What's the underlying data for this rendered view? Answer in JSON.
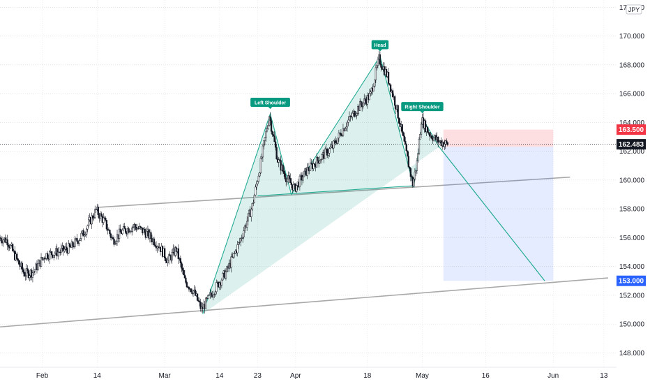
{
  "chart_data": {
    "type": "candlestick",
    "currency": "JPY",
    "y_axis": {
      "range": [
        147,
        172.5
      ],
      "ticks": [
        "148.000",
        "150.000",
        "152.000",
        "154.000",
        "156.000",
        "158.000",
        "160.000",
        "162.000",
        "164.000",
        "166.000",
        "168.000",
        "170.000",
        "172.000"
      ],
      "tick_values": [
        148,
        150,
        152,
        154,
        156,
        158,
        160,
        162,
        164,
        166,
        168,
        170,
        172
      ]
    },
    "x_axis": {
      "ticks": [
        "Feb",
        "14",
        "Mar",
        "14",
        "23",
        "Apr",
        "18",
        "May",
        "16",
        "Jun",
        "13"
      ],
      "tick_dates": [
        "2024-02-01",
        "2024-02-14",
        "2024-03-01",
        "2024-03-14",
        "2024-03-23",
        "2024-04-01",
        "2024-04-18",
        "2024-05-01",
        "2024-05-16",
        "2024-06-01",
        "2024-06-13"
      ],
      "range": [
        "2024-01-22",
        "2024-06-16"
      ]
    },
    "grid": true,
    "current_price": {
      "label": "162.483",
      "value": 162.483,
      "color": "#131722"
    },
    "stop_loss": {
      "label": "163.500",
      "value": 163.5,
      "color": "#f23645"
    },
    "target": {
      "label": "153.000",
      "value": 153.0,
      "color": "#2962ff"
    },
    "annotations": [
      {
        "text": "Left Shoulder",
        "date": "2024-03-26",
        "value": 164.6
      },
      {
        "text": "Head",
        "date": "2024-04-21",
        "value": 168.6
      },
      {
        "text": "Right Shoulder",
        "date": "2024-05-01",
        "value": 164.3
      }
    ],
    "pattern_outline": [
      [
        "2024-03-10",
        150.7
      ],
      [
        "2024-03-26",
        164.6
      ],
      [
        "2024-03-31",
        159.0
      ],
      [
        "2024-04-21",
        168.6
      ],
      [
        "2024-04-29",
        159.5
      ],
      [
        "2024-05-01",
        164.3
      ],
      [
        "2024-05-05",
        162.3
      ]
    ],
    "neckline": [
      [
        "2024-03-23",
        158.9
      ],
      [
        "2024-04-29",
        159.6
      ]
    ],
    "projection": [
      [
        "2024-05-05",
        162.3
      ],
      [
        "2024-05-30",
        153.0
      ]
    ],
    "upper_channel": [
      [
        "2024-02-14",
        158.1
      ],
      [
        "2024-06-05",
        160.2
      ]
    ],
    "lower_channel": [
      [
        "2024-01-22",
        149.8
      ],
      [
        "2024-06-14",
        153.2
      ]
    ],
    "trade_box": {
      "start": "2024-05-06",
      "end": "2024-06-01",
      "entry": 162.3,
      "stop": 163.5,
      "target": 153.0
    },
    "price_path": [
      [
        "2024-01-22",
        156.0
      ],
      [
        "2024-01-24",
        155.8
      ],
      [
        "2024-01-26",
        154.6
      ],
      [
        "2024-01-28",
        153.5
      ],
      [
        "2024-01-30",
        153.6
      ],
      [
        "2024-02-02",
        154.8
      ],
      [
        "2024-02-05",
        155.0
      ],
      [
        "2024-02-08",
        155.3
      ],
      [
        "2024-02-11",
        156.3
      ],
      [
        "2024-02-14",
        157.9
      ],
      [
        "2024-02-16",
        157.1
      ],
      [
        "2024-02-18",
        155.8
      ],
      [
        "2024-02-20",
        156.4
      ],
      [
        "2024-02-23",
        156.8
      ],
      [
        "2024-02-26",
        156.3
      ],
      [
        "2024-02-29",
        155.4
      ],
      [
        "2024-03-02",
        154.4
      ],
      [
        "2024-03-04",
        155.2
      ],
      [
        "2024-03-06",
        153.0
      ],
      [
        "2024-03-08",
        152.3
      ],
      [
        "2024-03-10",
        151.0
      ],
      [
        "2024-03-13",
        152.4
      ],
      [
        "2024-03-16",
        153.7
      ],
      [
        "2024-03-19",
        155.7
      ],
      [
        "2024-03-22",
        158.2
      ],
      [
        "2024-03-24",
        161.2
      ],
      [
        "2024-03-26",
        164.5
      ],
      [
        "2024-03-28",
        161.4
      ],
      [
        "2024-03-30",
        160.2
      ],
      [
        "2024-04-01",
        159.4
      ],
      [
        "2024-04-04",
        160.7
      ],
      [
        "2024-04-07",
        161.5
      ],
      [
        "2024-04-10",
        162.3
      ],
      [
        "2024-04-13",
        163.8
      ],
      [
        "2024-04-16",
        165.0
      ],
      [
        "2024-04-19",
        165.9
      ],
      [
        "2024-04-21",
        168.4
      ],
      [
        "2024-04-23",
        167.2
      ],
      [
        "2024-04-25",
        165.2
      ],
      [
        "2024-04-27",
        162.5
      ],
      [
        "2024-04-29",
        159.7
      ],
      [
        "2024-04-30",
        161.2
      ],
      [
        "2024-05-01",
        164.2
      ],
      [
        "2024-05-03",
        163.2
      ],
      [
        "2024-05-05",
        162.7
      ],
      [
        "2024-05-07",
        162.5
      ]
    ]
  }
}
